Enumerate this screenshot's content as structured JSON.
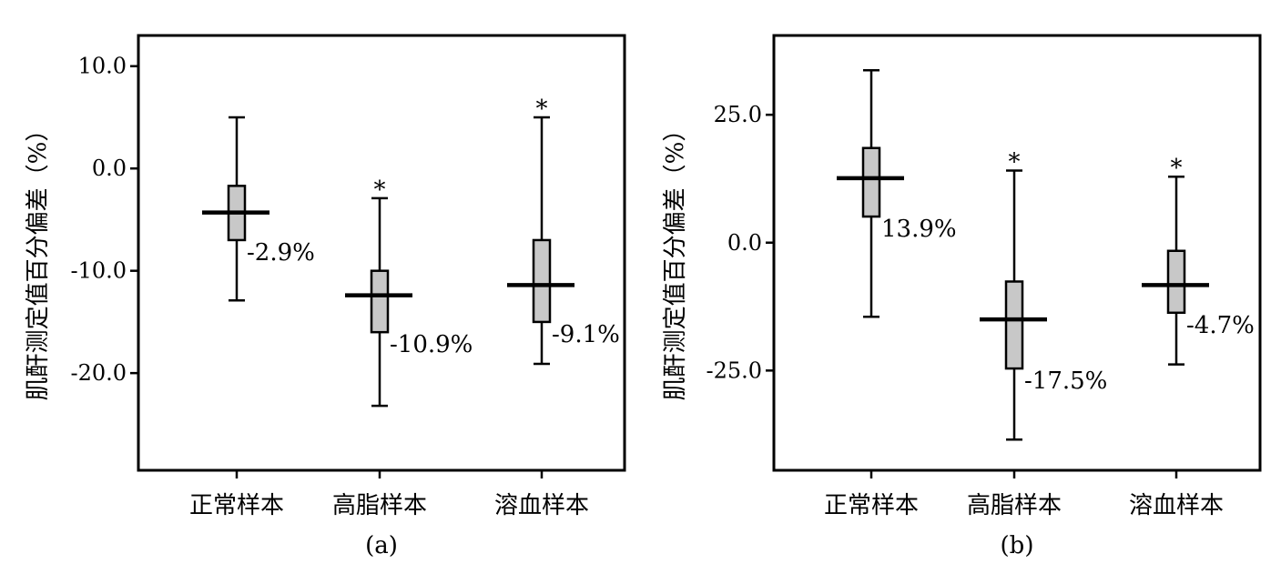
{
  "chart_data": [
    {
      "type": "box",
      "panel_label": "(a)",
      "ylabel": "肌酐测定值百分偏差（%）",
      "categories": [
        "正常样本",
        "高脂样本",
        "溶血样本"
      ],
      "yticks": [
        "10.0",
        "0.0",
        "-10.0",
        "-20.0"
      ],
      "ytick_values": [
        10,
        0,
        -10,
        -20
      ],
      "ylim": [
        -29.5,
        13
      ],
      "boxes": [
        {
          "category": "正常样本",
          "whisker_high": 5.0,
          "q3": -1.7,
          "median": -4.3,
          "q1": -7.0,
          "whisker_low": -12.9,
          "label": "-2.9%",
          "significant": false
        },
        {
          "category": "高脂样本",
          "whisker_high": -2.9,
          "q3": -10.0,
          "median": -12.4,
          "q1": -16.0,
          "whisker_low": -23.2,
          "label": "-10.9%",
          "significant": true
        },
        {
          "category": "溶血样本",
          "whisker_high": 5.0,
          "q3": -7.0,
          "median": -11.4,
          "q1": -15.0,
          "whisker_low": -19.1,
          "label": "-9.1%",
          "significant": true
        }
      ],
      "significance_marker": "*"
    },
    {
      "type": "box",
      "panel_label": "(b)",
      "ylabel": "肌酐测定值百分偏差（%）",
      "categories": [
        "正常样本",
        "高脂样本",
        "溶血样本"
      ],
      "yticks": [
        "25.0",
        "0.0",
        "-25.0"
      ],
      "ytick_values": [
        25,
        0,
        -25
      ],
      "ylim": [
        -44.5,
        40.5
      ],
      "boxes": [
        {
          "category": "正常样本",
          "whisker_high": 33.7,
          "q3": 18.5,
          "median": 12.6,
          "q1": 5.1,
          "whisker_low": -14.5,
          "label": "13.9%",
          "significant": false
        },
        {
          "category": "高脂样本",
          "whisker_high": 14.1,
          "q3": -7.6,
          "median": -15.0,
          "q1": -24.6,
          "whisker_low": -38.5,
          "label": "-17.5%",
          "significant": true
        },
        {
          "category": "溶血样本",
          "whisker_high": 12.9,
          "q3": -1.6,
          "median": -8.3,
          "q1": -13.7,
          "whisker_low": -23.8,
          "label": "-4.7%",
          "significant": true
        }
      ],
      "significance_marker": "*"
    }
  ],
  "colors": {
    "box_fill": "#c8c8c8",
    "stroke": "#000000",
    "background": "#ffffff"
  }
}
